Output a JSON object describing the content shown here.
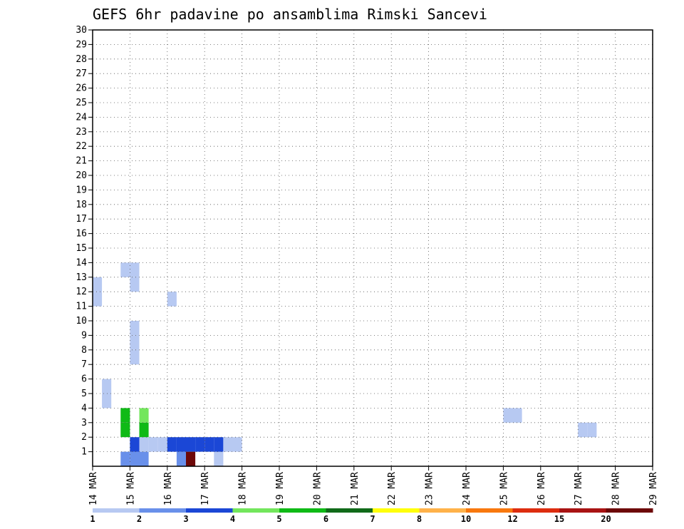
{
  "chart_data": {
    "type": "heatmap",
    "title": "GEFS 6hr padavine po ansamblima Rimski Sancevi",
    "x_tick_labels": [
      "14 MAR",
      "15 MAR",
      "16 MAR",
      "17 MAR",
      "18 MAR",
      "19 MAR",
      "20 MAR",
      "21 MAR",
      "22 MAR",
      "23 MAR",
      "24 MAR",
      "25 MAR",
      "26 MAR",
      "27 MAR",
      "28 MAR",
      "29 MAR"
    ],
    "y_tick_labels": [
      "1",
      "2",
      "3",
      "4",
      "5",
      "6",
      "7",
      "8",
      "9",
      "10",
      "11",
      "12",
      "13",
      "14",
      "15",
      "16",
      "17",
      "18",
      "19",
      "20",
      "21",
      "22",
      "23",
      "24",
      "25",
      "26",
      "27",
      "28",
      "29",
      "30"
    ],
    "xlim": [
      0,
      60
    ],
    "ylim": [
      0,
      30
    ],
    "grid": true,
    "legend": {
      "placement": "bottom",
      "colors": [
        "#b7c9f2",
        "#6990ea",
        "#1b47d6",
        "#73e65c",
        "#0fba16",
        "#106a19",
        "#ffff0a",
        "#ffb24a",
        "#f8780e",
        "#dd2d0f",
        "#a91313",
        "#6d0808"
      ],
      "labels": [
        "1",
        "2",
        "3",
        "4",
        "5",
        "6",
        "7",
        "8",
        "10",
        "12",
        "15",
        "20"
      ]
    },
    "cells": [
      {
        "x": 13,
        "y": 0,
        "c": 0
      },
      {
        "x": 10,
        "y": 0,
        "c": 11
      },
      {
        "x": 9,
        "y": 0,
        "c": 1
      },
      {
        "x": 5,
        "y": 0,
        "c": 1
      },
      {
        "x": 4,
        "y": 0,
        "c": 1
      },
      {
        "x": 3,
        "y": 0,
        "c": 1
      },
      {
        "x": 4,
        "y": 1,
        "c": 2
      },
      {
        "x": 5,
        "y": 1,
        "c": 0
      },
      {
        "x": 6,
        "y": 1,
        "c": 0
      },
      {
        "x": 7,
        "y": 1,
        "c": 0
      },
      {
        "x": 8,
        "y": 1,
        "c": 2
      },
      {
        "x": 9,
        "y": 1,
        "c": 2
      },
      {
        "x": 10,
        "y": 1,
        "c": 2
      },
      {
        "x": 11,
        "y": 1,
        "c": 2
      },
      {
        "x": 12,
        "y": 1,
        "c": 2
      },
      {
        "x": 13,
        "y": 1,
        "c": 2
      },
      {
        "x": 14,
        "y": 1,
        "c": 0
      },
      {
        "x": 15,
        "y": 1,
        "c": 0
      },
      {
        "x": 3,
        "y": 2,
        "c": 4
      },
      {
        "x": 5,
        "y": 2,
        "c": 4
      },
      {
        "x": 52,
        "y": 2,
        "c": 0
      },
      {
        "x": 53,
        "y": 2,
        "c": 0
      },
      {
        "x": 3,
        "y": 3,
        "c": 4
      },
      {
        "x": 5,
        "y": 3,
        "c": 3
      },
      {
        "x": 44,
        "y": 3,
        "c": 0
      },
      {
        "x": 45,
        "y": 3,
        "c": 0
      },
      {
        "x": 1,
        "y": 4,
        "c": 0
      },
      {
        "x": 1,
        "y": 5,
        "c": 0
      },
      {
        "x": 4,
        "y": 7,
        "c": 0
      },
      {
        "x": 4,
        "y": 8,
        "c": 0
      },
      {
        "x": 4,
        "y": 9,
        "c": 0
      },
      {
        "x": 0,
        "y": 11,
        "c": 0
      },
      {
        "x": 0,
        "y": 12,
        "c": 0
      },
      {
        "x": 3,
        "y": 13,
        "c": 0
      },
      {
        "x": 4,
        "y": 13,
        "c": 0
      },
      {
        "x": 4,
        "y": 12,
        "c": 0
      },
      {
        "x": 8,
        "y": 11,
        "c": 0
      }
    ]
  }
}
